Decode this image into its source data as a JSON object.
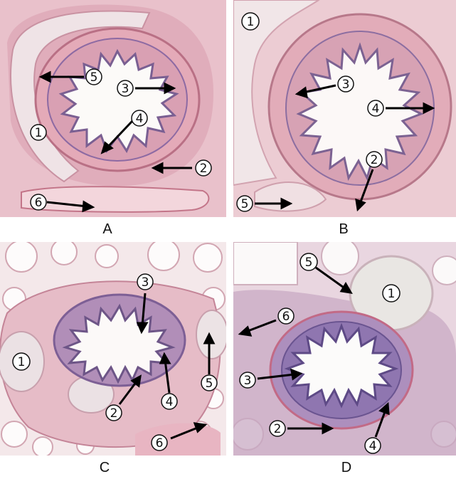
{
  "figure": {
    "panels": [
      {
        "label": "A",
        "markers": [
          "1",
          "2",
          "3",
          "4",
          "5",
          "6"
        ]
      },
      {
        "label": "B",
        "markers": [
          "1",
          "2",
          "3",
          "4",
          "5"
        ]
      },
      {
        "label": "C",
        "markers": [
          "1",
          "2",
          "3",
          "4",
          "5",
          "6"
        ]
      },
      {
        "label": "D",
        "markers": [
          "1",
          "2",
          "3",
          "4",
          "5",
          "6"
        ]
      }
    ],
    "marker_glyphs": {
      "1": "①",
      "2": "②",
      "3": "③",
      "4": "④",
      "5": "⑤",
      "6": "⑥"
    },
    "colors": {
      "tissue_pink": "#e7b3bf",
      "tissue_dark": "#c77d93",
      "epithelium": "#8b6f9e",
      "cartilage": "#e8dde0",
      "lumen": "#fbf8f7",
      "alveoli_bg": "#f7eef0",
      "arrow": "#000000"
    }
  }
}
